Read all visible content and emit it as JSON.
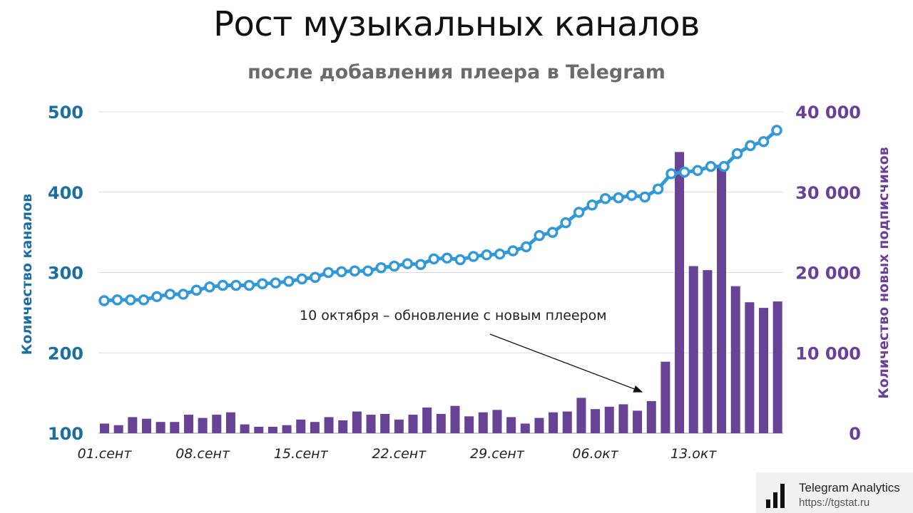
{
  "chart_data": {
    "type": "line+bar",
    "title": "Рост музыкальных каналов",
    "subtitle": "после добавления плеера в Telegram",
    "y_left_label": "Количество каналов",
    "y_right_label": "Количество новых подписчиков",
    "y_left_lim": [
      100,
      500
    ],
    "y_left_ticks": [
      "100",
      "200",
      "300",
      "400",
      "500"
    ],
    "y_right_lim": [
      0,
      40000
    ],
    "y_right_ticks": [
      "0",
      "10 000",
      "20 000",
      "30 000",
      "40 000"
    ],
    "x_tick_labels": [
      "01.сент",
      "08.сент",
      "15.сент",
      "22.сент",
      "29.сент",
      "06.окт",
      "13.окт"
    ],
    "grid": true,
    "colors": {
      "line": "#3399d6",
      "bar": "#674295",
      "left_axis": "#1b6fa0",
      "right_axis": "#6b3f98"
    },
    "series": [
      {
        "axis": "left",
        "type": "line",
        "values": [
          265,
          266,
          266,
          266,
          270,
          273,
          273,
          278,
          282,
          284,
          284,
          284,
          286,
          287,
          289,
          292,
          294,
          300,
          301,
          302,
          302,
          306,
          308,
          311,
          310,
          317,
          318,
          316,
          320,
          322,
          323,
          327,
          332,
          346,
          350,
          362,
          375,
          384,
          392,
          393,
          396,
          394,
          404,
          423,
          425,
          427,
          432,
          432,
          448,
          458,
          463,
          477
        ]
      },
      {
        "axis": "right",
        "type": "bar",
        "values": [
          1200,
          1000,
          2000,
          1800,
          1400,
          1400,
          2300,
          1900,
          2300,
          2600,
          1100,
          800,
          800,
          1000,
          1700,
          1400,
          2000,
          1600,
          2700,
          2300,
          2400,
          1700,
          2300,
          3200,
          2400,
          3400,
          2100,
          2600,
          2900,
          2000,
          1200,
          1900,
          2600,
          2700,
          4400,
          3000,
          3300,
          3600,
          2800,
          4000,
          8900,
          35000,
          20800,
          20300,
          33300,
          18300,
          16300,
          15600,
          16400
        ]
      }
    ],
    "annotation": "10 октября – обновление с новым плеером"
  },
  "brand": {
    "name": "Telegram Analytics",
    "url": "https://tgstat.ru"
  }
}
